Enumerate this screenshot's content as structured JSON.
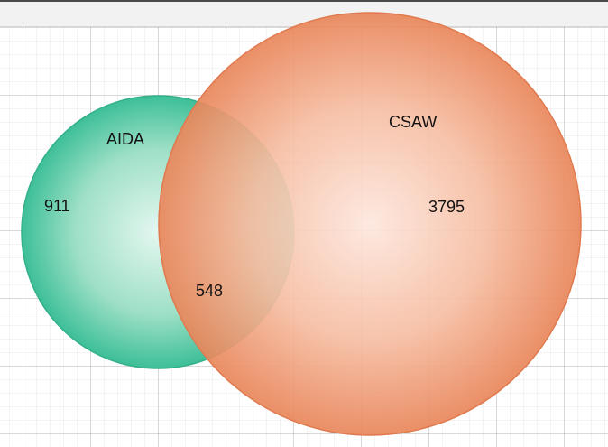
{
  "venn": {
    "sets": [
      {
        "label": "AIDA",
        "color": "#3dbf98"
      },
      {
        "label": "CSAW",
        "color": "#ee8a5e"
      }
    ],
    "regions": {
      "aida_only": "911",
      "intersection": "548",
      "csaw_only": "3795"
    }
  }
}
